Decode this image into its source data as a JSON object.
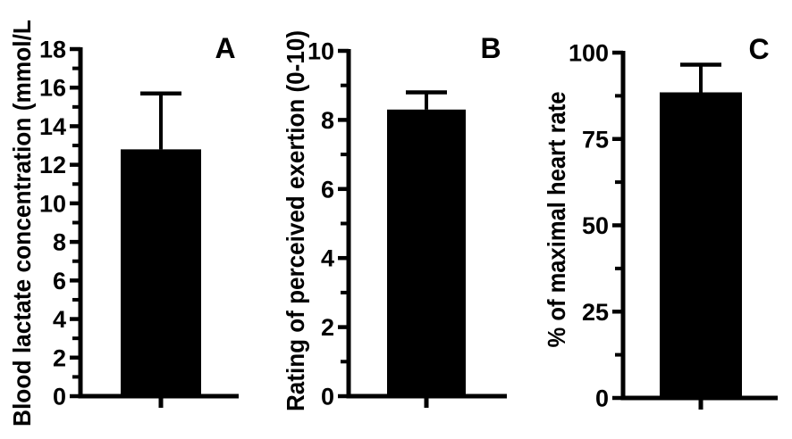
{
  "figure": {
    "background_color": "#ffffff",
    "ink_color": "#000000",
    "description": "Three-panel bar chart figure with SD error bars"
  },
  "chart_data": [
    {
      "type": "bar",
      "panel": "A",
      "title": "",
      "xlabel": "",
      "ylabel": "Blood lactate concentration (mmol/L",
      "ylim": [
        0,
        18
      ],
      "major_ticks": [
        0,
        2,
        4,
        6,
        8,
        10,
        12,
        14,
        16,
        18
      ],
      "minor_ticks": [
        1,
        3,
        5,
        7,
        9,
        11,
        13,
        15,
        17
      ],
      "categories": [
        ""
      ],
      "values": [
        12.8
      ],
      "error_upper": [
        15.7
      ],
      "bar_color": "#000000",
      "grid": "off",
      "legend": "none"
    },
    {
      "type": "bar",
      "panel": "B",
      "title": "",
      "xlabel": "",
      "ylabel": "Rating of perceived exertion (0-10)",
      "ylim": [
        0,
        10
      ],
      "major_ticks": [
        0,
        2,
        4,
        6,
        8,
        10
      ],
      "minor_ticks": [
        1,
        3,
        5,
        7,
        9
      ],
      "categories": [
        ""
      ],
      "values": [
        8.3
      ],
      "error_upper": [
        8.8
      ],
      "bar_color": "#000000",
      "grid": "off",
      "legend": "none"
    },
    {
      "type": "bar",
      "panel": "C",
      "title": "",
      "xlabel": "",
      "ylabel": "% of maximal heart rate",
      "ylim": [
        0,
        100
      ],
      "major_ticks": [
        0,
        25,
        50,
        75,
        100
      ],
      "minor_ticks": [
        12.5,
        37.5,
        62.5,
        87.5
      ],
      "categories": [
        ""
      ],
      "values": [
        88.5
      ],
      "error_upper": [
        96.5
      ],
      "bar_color": "#000000",
      "grid": "off",
      "legend": "none"
    }
  ]
}
